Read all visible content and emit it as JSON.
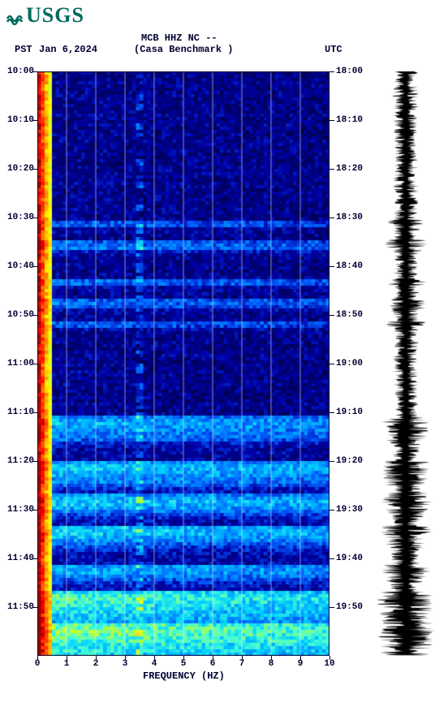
{
  "logo": {
    "text": "USGS"
  },
  "header": {
    "tz_left": "PST",
    "date": "Jan 6,2024",
    "station": "MCB HHZ NC --",
    "location": "(Casa Benchmark )",
    "tz_right": "UTC"
  },
  "spectrogram": {
    "type": "heatmap",
    "xlabel": "FREQUENCY (HZ)",
    "xlim": [
      0,
      10
    ],
    "xticks": [
      0,
      1,
      2,
      3,
      4,
      5,
      6,
      7,
      8,
      9,
      10
    ],
    "left_time_ticks": [
      "10:00",
      "10:10",
      "10:20",
      "10:30",
      "10:40",
      "10:50",
      "11:00",
      "11:10",
      "11:20",
      "11:30",
      "11:40",
      "11:50"
    ],
    "right_time_ticks": [
      "18:00",
      "18:10",
      "18:20",
      "18:30",
      "18:40",
      "18:50",
      "19:00",
      "19:10",
      "19:20",
      "19:30",
      "19:40",
      "19:50"
    ],
    "grid_vertical_at": [
      1,
      2,
      3,
      4,
      5,
      6,
      7,
      8,
      9
    ],
    "grid_color": "#ffffff",
    "background_color": "#ffffff",
    "colormap": {
      "stops": [
        {
          "v": 0.0,
          "c": "#00004d"
        },
        {
          "v": 0.15,
          "c": "#0000a8"
        },
        {
          "v": 0.3,
          "c": "#0060ff"
        },
        {
          "v": 0.45,
          "c": "#00d0ff"
        },
        {
          "v": 0.55,
          "c": "#4dffd0"
        },
        {
          "v": 0.65,
          "c": "#b0ff40"
        },
        {
          "v": 0.75,
          "c": "#ffff00"
        },
        {
          "v": 0.85,
          "c": "#ff8000"
        },
        {
          "v": 0.95,
          "c": "#ff0000"
        },
        {
          "v": 1.0,
          "c": "#a00000"
        }
      ]
    },
    "nx": 80,
    "ny": 180,
    "row_base_intensity_comment": "Per-row average intensity 0-1 driving overall bluish→cyan/yellow bands; low-frequency column always hot",
    "row_base": [
      0.1,
      0.11,
      0.1,
      0.12,
      0.11,
      0.1,
      0.11,
      0.12,
      0.1,
      0.11,
      0.11,
      0.1,
      0.11,
      0.12,
      0.11,
      0.1,
      0.12,
      0.11,
      0.1,
      0.11,
      0.11,
      0.12,
      0.11,
      0.1,
      0.12,
      0.11,
      0.1,
      0.11,
      0.1,
      0.11,
      0.11,
      0.12,
      0.11,
      0.1,
      0.12,
      0.11,
      0.1,
      0.11,
      0.12,
      0.11,
      0.11,
      0.1,
      0.12,
      0.11,
      0.1,
      0.11,
      0.28,
      0.3,
      0.14,
      0.13,
      0.12,
      0.11,
      0.3,
      0.32,
      0.33,
      0.2,
      0.14,
      0.13,
      0.11,
      0.12,
      0.11,
      0.1,
      0.12,
      0.11,
      0.32,
      0.3,
      0.15,
      0.13,
      0.12,
      0.11,
      0.3,
      0.32,
      0.28,
      0.16,
      0.12,
      0.11,
      0.13,
      0.3,
      0.28,
      0.15,
      0.12,
      0.11,
      0.1,
      0.12,
      0.11,
      0.1,
      0.11,
      0.12,
      0.11,
      0.1,
      0.11,
      0.1,
      0.12,
      0.11,
      0.1,
      0.11,
      0.12,
      0.11,
      0.1,
      0.11,
      0.11,
      0.1,
      0.12,
      0.11,
      0.1,
      0.11,
      0.35,
      0.4,
      0.42,
      0.4,
      0.38,
      0.36,
      0.34,
      0.3,
      0.22,
      0.18,
      0.16,
      0.15,
      0.14,
      0.13,
      0.4,
      0.45,
      0.44,
      0.42,
      0.4,
      0.38,
      0.36,
      0.3,
      0.22,
      0.18,
      0.38,
      0.42,
      0.46,
      0.44,
      0.4,
      0.34,
      0.28,
      0.22,
      0.18,
      0.16,
      0.44,
      0.46,
      0.45,
      0.42,
      0.38,
      0.32,
      0.26,
      0.22,
      0.18,
      0.16,
      0.18,
      0.16,
      0.38,
      0.42,
      0.4,
      0.36,
      0.3,
      0.24,
      0.2,
      0.18,
      0.5,
      0.55,
      0.56,
      0.54,
      0.52,
      0.5,
      0.48,
      0.46,
      0.44,
      0.42,
      0.58,
      0.6,
      0.62,
      0.6,
      0.58,
      0.56,
      0.54,
      0.52,
      0.5,
      0.48
    ],
    "low_freq_band": {
      "cols": 4,
      "intensity": 0.95
    }
  },
  "amplitude_trace": {
    "type": "waveform",
    "color": "#000000",
    "background": "#ffffff",
    "samples_comment": "Relative half-width envelope 0-1, one per spectrogram row",
    "envelope": [
      0.4,
      0.38,
      0.42,
      0.4,
      0.38,
      0.42,
      0.4,
      0.45,
      0.4,
      0.38,
      0.42,
      0.4,
      0.38,
      0.42,
      0.4,
      0.45,
      0.4,
      0.38,
      0.42,
      0.4,
      0.38,
      0.42,
      0.4,
      0.45,
      0.4,
      0.38,
      0.42,
      0.4,
      0.38,
      0.42,
      0.4,
      0.38,
      0.42,
      0.4,
      0.38,
      0.42,
      0.4,
      0.45,
      0.4,
      0.38,
      0.42,
      0.4,
      0.38,
      0.42,
      0.4,
      0.45,
      0.6,
      0.65,
      0.48,
      0.44,
      0.42,
      0.4,
      0.68,
      0.72,
      0.74,
      0.55,
      0.46,
      0.44,
      0.4,
      0.42,
      0.4,
      0.38,
      0.42,
      0.4,
      0.7,
      0.66,
      0.48,
      0.44,
      0.42,
      0.4,
      0.68,
      0.72,
      0.65,
      0.5,
      0.42,
      0.4,
      0.44,
      0.68,
      0.64,
      0.48,
      0.42,
      0.4,
      0.38,
      0.42,
      0.4,
      0.38,
      0.4,
      0.42,
      0.4,
      0.38,
      0.4,
      0.38,
      0.42,
      0.4,
      0.38,
      0.4,
      0.42,
      0.4,
      0.38,
      0.4,
      0.4,
      0.38,
      0.42,
      0.4,
      0.38,
      0.4,
      0.72,
      0.78,
      0.82,
      0.78,
      0.76,
      0.74,
      0.72,
      0.66,
      0.56,
      0.5,
      0.48,
      0.46,
      0.44,
      0.42,
      0.78,
      0.84,
      0.82,
      0.8,
      0.78,
      0.76,
      0.74,
      0.66,
      0.56,
      0.5,
      0.76,
      0.82,
      0.88,
      0.84,
      0.78,
      0.7,
      0.62,
      0.56,
      0.5,
      0.48,
      0.84,
      0.88,
      0.86,
      0.82,
      0.76,
      0.68,
      0.6,
      0.56,
      0.5,
      0.48,
      0.5,
      0.48,
      0.76,
      0.82,
      0.78,
      0.74,
      0.66,
      0.58,
      0.52,
      0.5,
      0.9,
      0.95,
      0.96,
      0.94,
      0.92,
      0.9,
      0.88,
      0.86,
      0.84,
      0.82,
      0.96,
      0.98,
      1.0,
      0.98,
      0.96,
      0.94,
      0.92,
      0.9,
      0.88,
      0.86
    ]
  },
  "frame_color": "#000033"
}
